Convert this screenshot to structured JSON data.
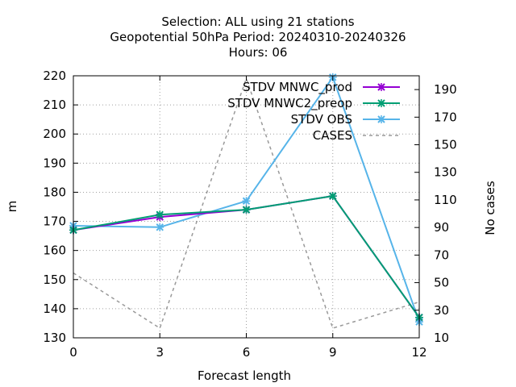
{
  "chart_data": {
    "type": "line",
    "title_lines": [
      "Selection: ALL using    21 stations",
      "Geopotential 50hPa   Period: 20240310-20240326",
      "Hours:  06"
    ],
    "xlabel": "Forecast length",
    "ylabel": "m",
    "y2label": "No cases",
    "x": [
      0,
      3,
      6,
      9,
      12
    ],
    "xlim": [
      0,
      12
    ],
    "ylim": [
      130,
      220
    ],
    "y2lim": [
      10,
      200
    ],
    "xticks": [
      0,
      3,
      6,
      9,
      12
    ],
    "yticks": [
      130,
      140,
      150,
      160,
      170,
      180,
      190,
      200,
      210,
      220
    ],
    "y2ticks": [
      10,
      30,
      50,
      70,
      90,
      110,
      130,
      150,
      170,
      190
    ],
    "grid": true,
    "legend_position": "top-right",
    "series": [
      {
        "name": "STDV MNWC_prod",
        "axis": "y",
        "color": "#9400d3",
        "marker": "x",
        "values": [
          167,
          171.5,
          174,
          178.7,
          137
        ]
      },
      {
        "name": "STDV MNWC2_preop",
        "axis": "y",
        "color": "#009e73",
        "marker": "x",
        "values": [
          167,
          172.3,
          174,
          178.7,
          137
        ]
      },
      {
        "name": "STDV OBS",
        "axis": "y",
        "color": "#56b4e9",
        "marker": "x",
        "values": [
          168.5,
          168,
          177,
          219.5,
          135.5
        ]
      },
      {
        "name": "CASES",
        "axis": "y2",
        "color": "#999999",
        "dash": true,
        "values": [
          57,
          17,
          198,
          17,
          36
        ]
      }
    ]
  }
}
